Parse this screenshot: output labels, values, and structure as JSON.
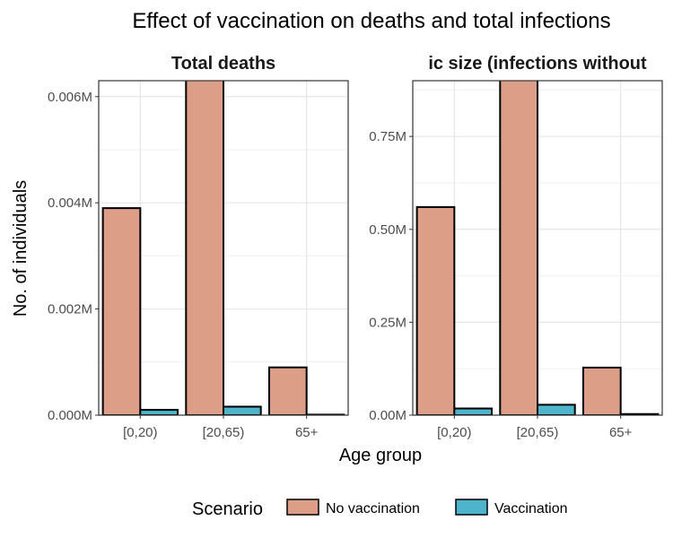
{
  "title": "Effect of vaccination on deaths and total infections",
  "xlabel": "Age group",
  "ylabel": "No. of individuals",
  "legend": {
    "title": "Scenario",
    "position": "bottom",
    "items": [
      {
        "label": "No vaccination",
        "color": "#dc9e87"
      },
      {
        "label": "Vaccination",
        "color": "#4db4cc"
      }
    ]
  },
  "chart_data": [
    {
      "type": "bar",
      "title": "Total deaths",
      "categories": [
        "[0,20)",
        "[20,65)",
        "65+"
      ],
      "series": [
        {
          "name": "No vaccination",
          "values": [
            0.0039,
            0.0068,
            0.0009
          ]
        },
        {
          "name": "Vaccination",
          "values": [
            0.0001,
            0.00016,
            1e-05
          ]
        }
      ],
      "ylim": [
        0,
        0.0063
      ],
      "yticks": [
        0,
        0.002,
        0.004,
        0.006
      ],
      "ytick_labels": [
        "0.000M",
        "0.002M",
        "0.004M",
        "0.006M"
      ],
      "grid": true
    },
    {
      "type": "bar",
      "title": "ic size (infections without",
      "categories": [
        "[0,20)",
        "[20,65)",
        "65+"
      ],
      "series": [
        {
          "name": "No vaccination",
          "values": [
            0.56,
            0.95,
            0.128
          ]
        },
        {
          "name": "Vaccination",
          "values": [
            0.018,
            0.028,
            0.003
          ]
        }
      ],
      "ylim": [
        0,
        0.9
      ],
      "yticks": [
        0,
        0.25,
        0.5,
        0.75
      ],
      "ytick_labels": [
        "0.00M",
        "0.25M",
        "0.50M",
        "0.75M"
      ],
      "grid": true
    }
  ]
}
